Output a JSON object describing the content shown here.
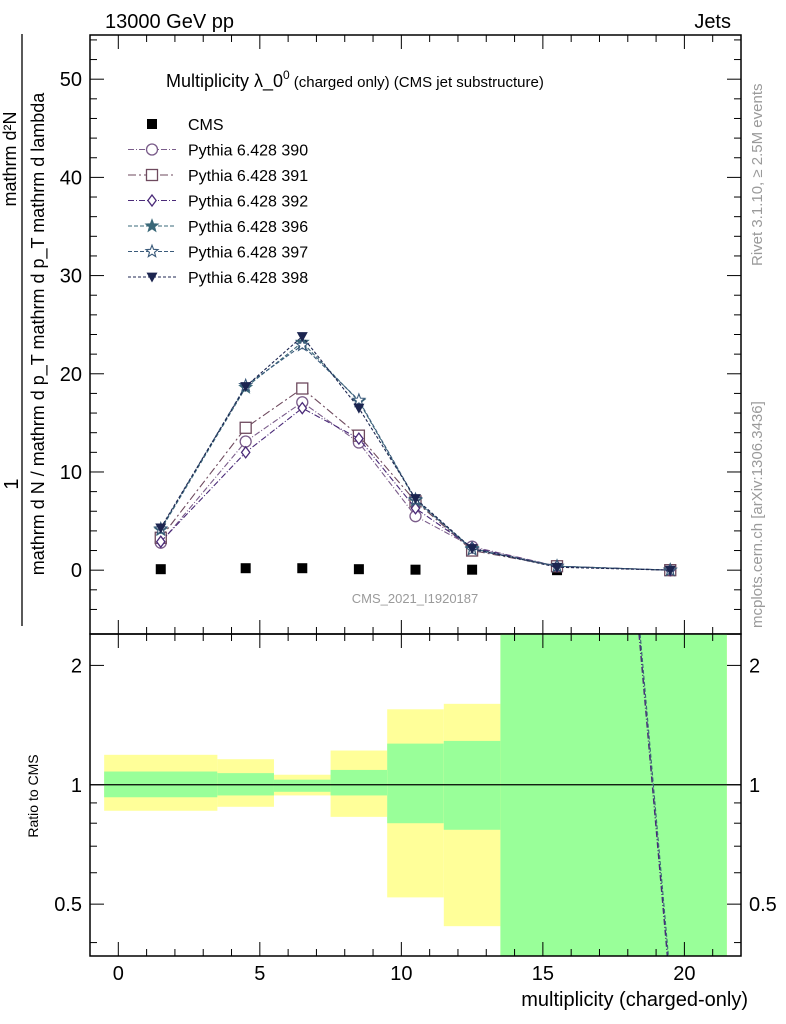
{
  "header": {
    "left": "13000 GeV pp",
    "right": "Jets"
  },
  "side_labels": {
    "rivet": "Rivet 3.1.10, ≥ 2.5M events",
    "mcplots": "mcplots.cern.ch [arXiv:1306.3436]"
  },
  "colors": {
    "cms": "#000000",
    "p390": "#7a5c8a",
    "p391": "#6e4a5e",
    "p392": "#4a2a78",
    "p396": "#3a6878",
    "p397": "#3a5a7a",
    "p398": "#1c2550",
    "band_yellow": "#ffff99",
    "band_green": "#99ff99"
  },
  "chart_data": [
    {
      "type": "line",
      "title_main": "Multiplicity λ_0",
      "title_sup": "0",
      "title_small": "(charged only) (CMS jet substructure)",
      "watermark": "CMS_2021_I1920187",
      "ylabel_num": "mathrm d²N",
      "ylabel_den": "mathrm d N / mathrm d p_T mathrm d p_T mathrm d lambda",
      "ylabel_one": "1",
      "ylim": [
        -6.5,
        54.5
      ],
      "yticks": [
        0,
        10,
        20,
        30,
        40,
        50
      ],
      "ytick_labels": [
        "0",
        "10",
        "20",
        "30",
        "40",
        "50"
      ],
      "xlim": [
        -1,
        22
      ],
      "legend_position": "top-left",
      "series": [
        {
          "name": "CMS",
          "marker": "square-filled",
          "color_key": "cms",
          "x": [
            1.5,
            4.5,
            6.5,
            8.5,
            10.5,
            12.5,
            15.5
          ],
          "y": [
            0.1,
            0.2,
            0.2,
            0.1,
            0.05,
            0.05,
            0.0
          ]
        },
        {
          "name": "Pythia 6.428 390",
          "marker": "circle-open",
          "color_key": "p390",
          "dash": "6,2,1,2",
          "x": [
            1.5,
            4.5,
            6.5,
            8.5,
            10.5,
            12.5,
            15.5,
            19.5
          ],
          "y": [
            2.8,
            13.1,
            17.1,
            13.0,
            5.5,
            2.4,
            0.4,
            0.0
          ]
        },
        {
          "name": "Pythia 6.428 391",
          "marker": "square-open",
          "color_key": "p391",
          "dash": "8,3,2,3",
          "x": [
            1.5,
            4.5,
            6.5,
            8.5,
            10.5,
            12.5,
            15.5,
            19.5
          ],
          "y": [
            3.3,
            14.5,
            18.5,
            13.7,
            7.0,
            2.0,
            0.4,
            0.0
          ]
        },
        {
          "name": "Pythia 6.428 392",
          "marker": "diamond-open",
          "color_key": "p392",
          "dash": "6,2,1,2",
          "x": [
            1.5,
            4.5,
            6.5,
            8.5,
            10.5,
            12.5,
            15.5,
            19.5
          ],
          "y": [
            2.9,
            12.0,
            16.5,
            13.4,
            6.3,
            2.3,
            0.4,
            0.0
          ]
        },
        {
          "name": "Pythia 6.428 396",
          "marker": "star-filled",
          "color_key": "p396",
          "dash": "4,2",
          "x": [
            1.5,
            4.5,
            6.5,
            8.5,
            10.5,
            12.5,
            15.5,
            19.5
          ],
          "y": [
            4.1,
            18.6,
            23.2,
            17.2,
            7.1,
            2.2,
            0.4,
            0.0
          ]
        },
        {
          "name": "Pythia 6.428 397",
          "marker": "star-open",
          "color_key": "p397",
          "dash": "4,2",
          "x": [
            1.5,
            4.5,
            6.5,
            8.5,
            10.5,
            12.5,
            15.5,
            19.5
          ],
          "y": [
            4.2,
            18.8,
            22.9,
            17.3,
            7.2,
            2.1,
            0.4,
            0.0
          ]
        },
        {
          "name": "Pythia 6.428 398",
          "marker": "triangle-down-filled",
          "color_key": "p398",
          "dash": "3,2",
          "x": [
            1.5,
            4.5,
            6.5,
            8.5,
            10.5,
            12.5,
            15.5,
            19.5
          ],
          "y": [
            4.3,
            18.7,
            23.8,
            16.5,
            7.3,
            2.2,
            0.3,
            0.0
          ]
        }
      ]
    },
    {
      "type": "area",
      "ylabel": "Ratio to CMS",
      "xlabel": "multiplicity (charged-only)",
      "ylim": [
        0.37,
        2.4
      ],
      "log_scale": true,
      "yticks": [
        0.5,
        1,
        2
      ],
      "ytick_labels": [
        "0.5",
        "1",
        "2"
      ],
      "xlim": [
        -1,
        22
      ],
      "xticks": [
        0,
        5,
        10,
        15,
        20
      ],
      "xtick_labels": [
        "0",
        "5",
        "10",
        "15",
        "20"
      ],
      "bands": [
        {
          "xlo": -0.5,
          "xhi": 3.5,
          "green": [
            0.93,
            1.08
          ],
          "yellow": [
            0.86,
            1.19
          ]
        },
        {
          "xlo": 3.5,
          "xhi": 5.5,
          "green": [
            0.94,
            1.07
          ],
          "yellow": [
            0.88,
            1.16
          ]
        },
        {
          "xlo": 5.5,
          "xhi": 7.5,
          "green": [
            0.96,
            1.03
          ],
          "yellow": [
            0.94,
            1.06
          ]
        },
        {
          "xlo": 7.5,
          "xhi": 9.5,
          "green": [
            0.94,
            1.09
          ],
          "yellow": [
            0.83,
            1.22
          ]
        },
        {
          "xlo": 9.5,
          "xhi": 11.5,
          "green": [
            0.8,
            1.27
          ],
          "yellow": [
            0.52,
            1.55
          ]
        },
        {
          "xlo": 11.5,
          "xhi": 13.5,
          "green": [
            0.77,
            1.29
          ],
          "yellow": [
            0.44,
            1.6
          ]
        },
        {
          "xlo": 13.5,
          "xhi": 21.5,
          "green": [
            0.37,
            2.4
          ],
          "yellow": [
            0.37,
            2.4
          ]
        }
      ],
      "ratio_line": {
        "x": [
          18.4,
          19.4
        ],
        "y": [
          2.4,
          0.37
        ]
      }
    }
  ]
}
